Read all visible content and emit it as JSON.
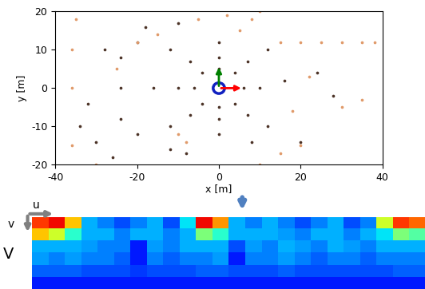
{
  "chart_data": [
    {
      "type": "scatter",
      "xlabel": "x [m]",
      "ylabel": "y [m]",
      "xlim": [
        -40,
        40
      ],
      "ylim": [
        -20,
        20
      ],
      "xticks": [
        -40,
        -20,
        0,
        20,
        40
      ],
      "yticks": [
        -20,
        -10,
        0,
        10,
        20
      ],
      "series": [
        {
          "color": "#4b3226",
          "marker": "o",
          "x": [
            6,
            4,
            0,
            -4,
            -6,
            -4,
            0,
            4,
            10,
            7,
            0,
            -7,
            -10,
            -7,
            0,
            7,
            16,
            12,
            0,
            -12,
            -16,
            -12,
            0,
            12,
            -24,
            -20,
            -10,
            -20,
            -12,
            -24,
            -24,
            20,
            -32,
            -30,
            -28,
            -26,
            -34,
            24,
            28,
            -18,
            -8,
            8
          ],
          "values": [
            0,
            4,
            5,
            4,
            0,
            -4,
            -5,
            -4,
            0,
            7,
            8,
            7,
            0,
            -7,
            -8,
            -7,
            2,
            10,
            12,
            10,
            0,
            -10,
            -12,
            -10,
            0,
            12,
            17,
            -12,
            -16,
            8,
            -8,
            -14,
            -4,
            -14,
            10,
            -18,
            -10,
            4,
            -2,
            16,
            -17,
            -14
          ]
        },
        {
          "color": "#e09a6a",
          "marker": "o",
          "x": [
            15,
            20,
            25,
            30,
            35,
            38,
            5,
            8,
            10,
            -36,
            -36,
            -36,
            -35,
            10,
            15,
            20,
            -10,
            -8,
            -20,
            -15,
            -5,
            2,
            30,
            35,
            -30,
            -25,
            18,
            22
          ],
          "values": [
            12,
            12,
            12,
            12,
            12,
            12,
            15,
            18,
            20,
            -15,
            0,
            10,
            18,
            -20,
            -17,
            -15,
            -12,
            -14,
            12,
            14,
            18,
            19,
            -5,
            -3,
            -20,
            5,
            -6,
            3
          ]
        }
      ]
    },
    {
      "type": "heatmap",
      "tick_labels": false,
      "clim": [
        0,
        1
      ],
      "annotations": [
        "u",
        "v",
        "V"
      ],
      "cells": [
        [
          0.85,
          0.9,
          0.7,
          0.3,
          0.25,
          0.2,
          0.25,
          0.3,
          0.2,
          0.35,
          0.9,
          0.75,
          0.3,
          0.25,
          0.3,
          0.25,
          0.2,
          0.25,
          0.3,
          0.2,
          0.25,
          0.6,
          0.85,
          0.8
        ],
        [
          0.7,
          0.6,
          0.4,
          0.3,
          0.3,
          0.25,
          0.3,
          0.3,
          0.25,
          0.3,
          0.5,
          0.4,
          0.3,
          0.3,
          0.3,
          0.28,
          0.25,
          0.3,
          0.3,
          0.25,
          0.3,
          0.35,
          0.5,
          0.45
        ],
        [
          0.3,
          0.3,
          0.3,
          0.28,
          0.25,
          0.25,
          0.15,
          0.28,
          0.25,
          0.3,
          0.3,
          0.3,
          0.2,
          0.28,
          0.25,
          0.3,
          0.28,
          0.25,
          0.3,
          0.28,
          0.25,
          0.3,
          0.3,
          0.3
        ],
        [
          0.28,
          0.25,
          0.28,
          0.25,
          0.25,
          0.22,
          0.15,
          0.25,
          0.22,
          0.25,
          0.25,
          0.28,
          0.15,
          0.25,
          0.25,
          0.28,
          0.25,
          0.22,
          0.25,
          0.25,
          0.22,
          0.25,
          0.25,
          0.25
        ],
        [
          0.22,
          0.22,
          0.22,
          0.2,
          0.2,
          0.2,
          0.18,
          0.2,
          0.2,
          0.2,
          0.22,
          0.22,
          0.2,
          0.2,
          0.2,
          0.22,
          0.2,
          0.2,
          0.2,
          0.2,
          0.2,
          0.2,
          0.22,
          0.22
        ],
        [
          0.15,
          0.15,
          0.15,
          0.15,
          0.15,
          0.15,
          0.15,
          0.15,
          0.15,
          0.15,
          0.15,
          0.15,
          0.15,
          0.15,
          0.15,
          0.15,
          0.15,
          0.15,
          0.15,
          0.15,
          0.15,
          0.15,
          0.15,
          0.15
        ]
      ]
    }
  ]
}
